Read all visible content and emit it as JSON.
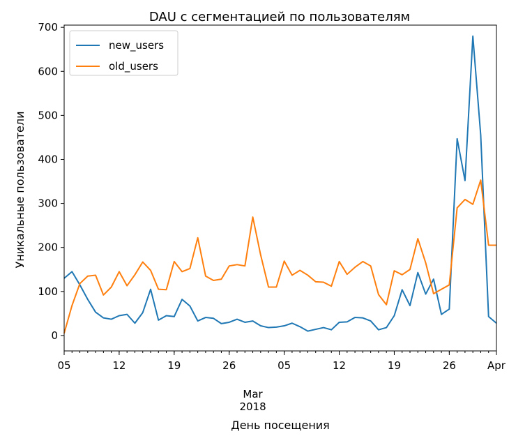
{
  "chart_data": {
    "type": "line",
    "title": "DAU с сегментацией по пользователям",
    "xlabel": "День посещения",
    "ylabel": "Уникальные пользователи",
    "x_start": "2018-02-05",
    "ylim": [
      -35,
      705
    ],
    "yticks": [
      0,
      100,
      200,
      300,
      400,
      500,
      600,
      700
    ],
    "x_ticks": [
      {
        "date": "2018-02-05",
        "label": "05"
      },
      {
        "date": "2018-02-12",
        "label": "12"
      },
      {
        "date": "2018-02-19",
        "label": "19"
      },
      {
        "date": "2018-02-26",
        "label": "26"
      },
      {
        "date": "2018-03-05",
        "label": "05"
      },
      {
        "date": "2018-03-12",
        "label": "12"
      },
      {
        "date": "2018-03-19",
        "label": "19"
      },
      {
        "date": "2018-03-26",
        "label": "26"
      },
      {
        "date": "2018-04-01",
        "label": "Apr"
      }
    ],
    "month_label": {
      "date": "2018-03-01",
      "line1": "Mar",
      "line2": "2018"
    },
    "legend_position": "top-left",
    "series": [
      {
        "name": "new_users",
        "color": "#1f77b4",
        "values": [
          130,
          145,
          115,
          82,
          53,
          40,
          37,
          45,
          48,
          28,
          52,
          105,
          35,
          45,
          43,
          82,
          67,
          33,
          41,
          39,
          27,
          30,
          37,
          30,
          33,
          22,
          18,
          19,
          22,
          28,
          20,
          10,
          14,
          18,
          13,
          30,
          31,
          41,
          40,
          33,
          13,
          18,
          45,
          104,
          68,
          143,
          94,
          128,
          48,
          60,
          447,
          352,
          680,
          455,
          43,
          28
        ]
      },
      {
        "name": "old_users",
        "color": "#ff7f0e",
        "values": [
          5,
          68,
          118,
          135,
          137,
          92,
          110,
          145,
          113,
          138,
          167,
          148,
          105,
          104,
          168,
          145,
          152,
          222,
          135,
          125,
          128,
          158,
          161,
          158,
          269,
          183,
          110,
          110,
          169,
          137,
          148,
          137,
          122,
          121,
          112,
          168,
          139,
          155,
          168,
          158,
          93,
          70,
          147,
          138,
          150,
          220,
          165,
          95,
          105,
          115,
          290,
          309,
          298,
          353,
          205,
          205
        ]
      }
    ]
  }
}
